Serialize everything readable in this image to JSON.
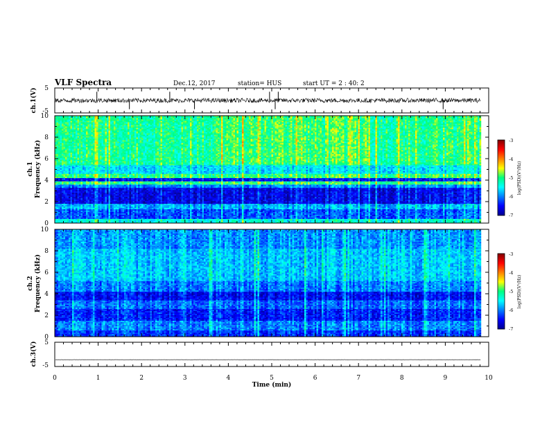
{
  "header": {
    "title": "VLF Spectra",
    "date": "Dec.12, 2017",
    "station": "station= HUS",
    "start": "start  UT =   2 : 40: 2"
  },
  "chart_data": [
    {
      "type": "line",
      "panel": "ch1-waveform",
      "ylabel": "ch.1(V)",
      "ylim": [
        -5,
        5
      ],
      "yticks": [
        "5",
        "-5"
      ],
      "xlim": [
        0,
        10
      ],
      "baseline": 0,
      "spikes_at_min": [
        0.97,
        1.72,
        2.65,
        3.22,
        4.95,
        5.08,
        5.15,
        8.95
      ]
    },
    {
      "type": "heatmap",
      "panel": "ch1-spectrogram",
      "ylabel": "ch.1",
      "ylabel2": "Frequency (kHz)",
      "ylim": [
        0,
        10
      ],
      "yticks": [
        "0",
        "2",
        "4",
        "6",
        "8",
        "10"
      ],
      "xlim": [
        0,
        10
      ],
      "data_extent_min": 9.8,
      "bands_khz": [
        {
          "from": 0.0,
          "to": 0.4,
          "level": -5.4
        },
        {
          "from": 0.4,
          "to": 1.3,
          "level": -6.2
        },
        {
          "from": 1.3,
          "to": 1.8,
          "level": -5.8
        },
        {
          "from": 1.8,
          "to": 3.3,
          "level": -6.6
        },
        {
          "from": 3.3,
          "to": 3.6,
          "level": -6.0
        },
        {
          "from": 3.6,
          "to": 3.9,
          "level": -5.0
        },
        {
          "from": 3.9,
          "to": 4.2,
          "level": -6.5
        },
        {
          "from": 4.2,
          "to": 4.6,
          "level": -5.0
        },
        {
          "from": 4.6,
          "to": 5.4,
          "level": -5.6
        },
        {
          "from": 5.4,
          "to": 10.0,
          "level": -5.1
        }
      ]
    },
    {
      "type": "heatmap",
      "panel": "ch2-spectrogram",
      "ylabel": "ch.2",
      "ylabel2": "Frequency (kHz)",
      "ylim": [
        0,
        10
      ],
      "yticks": [
        "0",
        "2",
        "4",
        "6",
        "8",
        "10"
      ],
      "xlim": [
        0,
        10
      ],
      "data_extent_min": 9.8,
      "bands_khz": [
        {
          "from": 0.0,
          "to": 0.6,
          "level": -6.3
        },
        {
          "from": 0.6,
          "to": 1.5,
          "level": -6.0
        },
        {
          "from": 1.5,
          "to": 2.6,
          "level": -6.4
        },
        {
          "from": 2.6,
          "to": 3.4,
          "level": -6.1
        },
        {
          "from": 3.4,
          "to": 4.2,
          "level": -6.5
        },
        {
          "from": 4.2,
          "to": 5.2,
          "level": -6.0
        },
        {
          "from": 5.2,
          "to": 8.2,
          "level": -5.7
        },
        {
          "from": 8.2,
          "to": 10.0,
          "level": -5.9
        }
      ]
    },
    {
      "type": "line",
      "panel": "ch3-waveform",
      "ylabel": "ch.3(V)",
      "ylim": [
        -5,
        5
      ],
      "yticks": [
        "5",
        "-5"
      ],
      "xlim": [
        0,
        10
      ],
      "baseline": -2.2
    }
  ],
  "colorbar": {
    "label": "log(PSD)(V²/Hz)",
    "range": [
      -7,
      -3
    ],
    "ticks": [
      "-3",
      "-4",
      "-5",
      "-6",
      "-7"
    ]
  },
  "xaxis": {
    "label": "Time  (min)",
    "ticks": [
      "0",
      "1",
      "2",
      "3",
      "4",
      "5",
      "6",
      "7",
      "8",
      "9",
      "10"
    ]
  }
}
